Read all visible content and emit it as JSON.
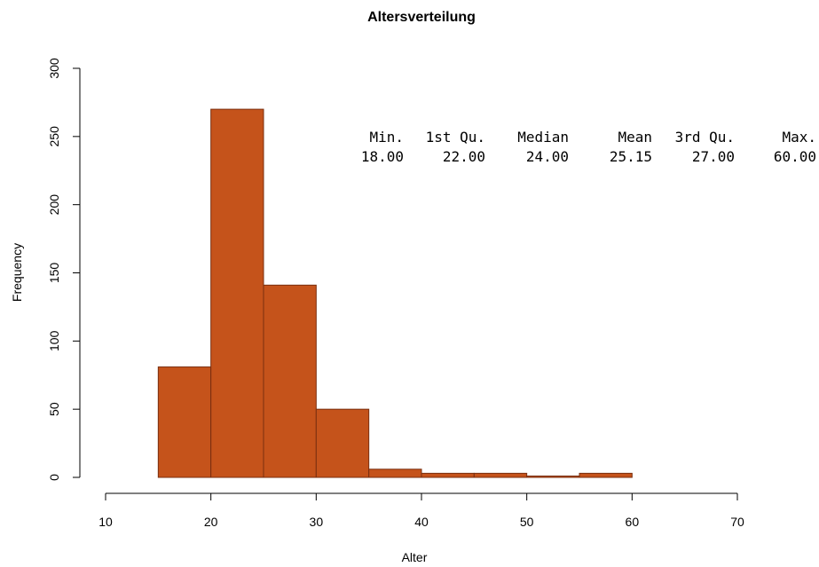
{
  "chart_data": {
    "type": "bar",
    "title": "Altersverteilung",
    "xlabel": "Alter",
    "ylabel": "Frequency",
    "bin_edges": [
      15,
      20,
      25,
      30,
      35,
      40,
      45,
      50,
      55,
      60
    ],
    "values": [
      81,
      270,
      141,
      50,
      6,
      3,
      3,
      1,
      3
    ],
    "xlim": [
      10,
      70
    ],
    "ylim": [
      0,
      300
    ],
    "x_ticks": [
      10,
      20,
      30,
      40,
      50,
      60,
      70
    ],
    "y_ticks": [
      0,
      50,
      100,
      150,
      200,
      250,
      300
    ],
    "bar_color": "#c5531b",
    "bar_border_color": "#7a2f0f",
    "grid": false,
    "annotations": [
      {
        "type": "summary_table",
        "headers": [
          "Min.",
          "1st Qu.",
          "Median",
          "Mean",
          "3rd Qu.",
          "Max."
        ],
        "values": [
          "18.00",
          "22.00",
          "24.00",
          "25.15",
          "27.00",
          "60.00"
        ]
      }
    ]
  }
}
